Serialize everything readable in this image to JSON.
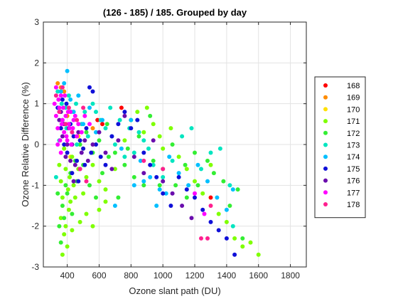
{
  "chart_data": {
    "type": "scatter",
    "title": "(126 - 185) / 185.  Grouped by day",
    "xlabel": "Ozone slant path (DU)",
    "ylabel": "Ozone Relative Difference (%)",
    "xlim": [
      250,
      1900
    ],
    "ylim": [
      -3,
      3
    ],
    "xticks": [
      400,
      600,
      800,
      1000,
      1200,
      1400,
      1600,
      1800
    ],
    "yticks": [
      -3,
      -2,
      -1,
      0,
      1,
      2,
      3
    ],
    "grid": true,
    "legend_position": "outside-right",
    "series": [
      {
        "name": "168",
        "color": "#ff0000",
        "points": [
          [
            590,
            0.6
          ],
          [
            620,
            0.5
          ],
          [
            740,
            0.9
          ],
          [
            360,
            0.4
          ],
          [
            1300,
            -1.3
          ]
        ]
      },
      {
        "name": "169",
        "color": "#ff8c00",
        "points": [
          [
            340,
            1.5
          ],
          [
            360,
            1.4
          ],
          [
            380,
            1.3
          ],
          [
            560,
            0.4
          ],
          [
            400,
            0.7
          ]
        ]
      },
      {
        "name": "170",
        "color": "#ffe000",
        "points": [
          [
            470,
            0.2
          ],
          [
            500,
            -0.1
          ],
          [
            380,
            0.5
          ],
          [
            420,
            -0.3
          ]
        ]
      },
      {
        "name": "171",
        "color": "#7fff00",
        "points": [
          [
            360,
            -1.8
          ],
          [
            380,
            -2.2
          ],
          [
            400,
            -2.5
          ],
          [
            420,
            -1.4
          ],
          [
            440,
            -1.0
          ],
          [
            470,
            -0.6
          ],
          [
            500,
            -1.2
          ],
          [
            520,
            -0.8
          ],
          [
            560,
            -0.5
          ],
          [
            600,
            -0.9
          ],
          [
            640,
            -1.1
          ],
          [
            700,
            -0.6
          ],
          [
            760,
            0.1
          ],
          [
            800,
            0.6
          ],
          [
            840,
            0.8
          ],
          [
            880,
            0.3
          ],
          [
            900,
            0.9
          ],
          [
            940,
            0.5
          ],
          [
            980,
            0.2
          ],
          [
            1000,
            -0.1
          ],
          [
            1050,
            0.4
          ],
          [
            1100,
            -0.3
          ],
          [
            1150,
            -0.6
          ],
          [
            1200,
            -0.9
          ],
          [
            1250,
            -1.2
          ],
          [
            1300,
            -0.5
          ],
          [
            1350,
            -1.7
          ],
          [
            1400,
            -1.9
          ],
          [
            1450,
            -2.3
          ],
          [
            1500,
            -2.5
          ],
          [
            1550,
            -2.4
          ],
          [
            1600,
            -2.7
          ],
          [
            370,
            -2.7
          ],
          [
            390,
            -2.0
          ],
          [
            410,
            -1.6
          ],
          [
            430,
            -2.1
          ],
          [
            450,
            -1.3
          ],
          [
            480,
            -1.9
          ],
          [
            520,
            -1.7
          ],
          [
            560,
            -2.0
          ],
          [
            600,
            -1.6
          ],
          [
            640,
            -1.4
          ],
          [
            350,
            -0.5
          ],
          [
            360,
            -0.9
          ],
          [
            370,
            -1.3
          ],
          [
            380,
            -0.1
          ],
          [
            390,
            -0.6
          ],
          [
            405,
            -1.1
          ],
          [
            415,
            -0.8
          ],
          [
            430,
            -0.3
          ]
        ]
      },
      {
        "name": "172",
        "color": "#33ee33",
        "points": [
          [
            350,
            -2.0
          ],
          [
            370,
            -1.5
          ],
          [
            390,
            -1.0
          ],
          [
            420,
            -0.7
          ],
          [
            450,
            -0.4
          ],
          [
            480,
            0.0
          ],
          [
            520,
            0.3
          ],
          [
            560,
            -0.2
          ],
          [
            600,
            0.1
          ],
          [
            650,
            0.5
          ],
          [
            700,
            -0.2
          ],
          [
            760,
            -0.5
          ],
          [
            820,
            -0.8
          ],
          [
            880,
            -1.0
          ],
          [
            940,
            -0.4
          ],
          [
            1000,
            -0.6
          ],
          [
            1080,
            -1.0
          ],
          [
            1150,
            -1.3
          ],
          [
            1200,
            -0.2
          ],
          [
            1280,
            -0.4
          ],
          [
            1320,
            -0.7
          ],
          [
            1380,
            -0.9
          ],
          [
            1420,
            -1.5
          ],
          [
            1470,
            -1.1
          ],
          [
            1500,
            -2.3
          ],
          [
            340,
            -1.2
          ],
          [
            360,
            -2.4
          ],
          [
            380,
            -1.8
          ],
          [
            400,
            -1.2
          ],
          [
            430,
            -1.7
          ],
          [
            460,
            -0.9
          ],
          [
            500,
            -0.5
          ],
          [
            540,
            -1.0
          ],
          [
            580,
            -1.3
          ],
          [
            620,
            -0.7
          ],
          [
            660,
            -0.3
          ],
          [
            720,
            -1.3
          ],
          [
            780,
            -0.1
          ],
          [
            850,
            0.2
          ],
          [
            920,
            0.7
          ],
          [
            980,
            -1.0
          ],
          [
            1060,
            0.0
          ],
          [
            1140,
            -0.5
          ],
          [
            1220,
            -1.0
          ]
        ]
      },
      {
        "name": "173",
        "color": "#00e5c0",
        "points": [
          [
            330,
            -0.8
          ],
          [
            350,
            0.1
          ],
          [
            370,
            0.6
          ],
          [
            390,
            0.9
          ],
          [
            410,
            1.2
          ],
          [
            430,
            0.3
          ],
          [
            460,
            0.0
          ],
          [
            490,
            0.5
          ],
          [
            530,
            0.2
          ],
          [
            580,
            0.8
          ],
          [
            640,
            0.4
          ],
          [
            700,
            0.0
          ],
          [
            760,
            -0.3
          ],
          [
            820,
            -0.2
          ],
          [
            880,
            0.1
          ],
          [
            940,
            -0.5
          ],
          [
            1000,
            -0.8
          ],
          [
            1060,
            -0.4
          ],
          [
            1120,
            0.2
          ],
          [
            1180,
            0.4
          ],
          [
            1240,
            -0.6
          ],
          [
            1300,
            -0.2
          ],
          [
            1360,
            -0.1
          ],
          [
            1420,
            -1.0
          ],
          [
            1440,
            -2.0
          ],
          [
            340,
            1.3
          ],
          [
            365,
            1.0
          ],
          [
            395,
            0.4
          ],
          [
            425,
            0.8
          ],
          [
            455,
            1.0
          ],
          [
            510,
            0.8
          ],
          [
            560,
            1.0
          ],
          [
            610,
            0.6
          ],
          [
            670,
            0.9
          ],
          [
            730,
            0.6
          ],
          [
            790,
            0.4
          ],
          [
            850,
            0.3
          ],
          [
            910,
            -0.1
          ]
        ]
      },
      {
        "name": "174",
        "color": "#00bfff",
        "points": [
          [
            360,
            1.3
          ],
          [
            380,
            1.5
          ],
          [
            400,
            1.8
          ],
          [
            420,
            1.1
          ],
          [
            440,
            0.8
          ],
          [
            470,
            1.2
          ],
          [
            500,
            0.5
          ],
          [
            540,
            0.9
          ],
          [
            580,
            0.3
          ],
          [
            620,
            0.6
          ],
          [
            680,
            0.2
          ],
          [
            740,
            -0.1
          ],
          [
            800,
            0.6
          ],
          [
            860,
            -0.4
          ],
          [
            920,
            -0.8
          ],
          [
            980,
            -1.1
          ],
          [
            1040,
            -0.3
          ],
          [
            1100,
            -0.7
          ],
          [
            1160,
            -1.0
          ],
          [
            1220,
            -0.5
          ],
          [
            1280,
            -0.9
          ],
          [
            1340,
            -1.3
          ],
          [
            1400,
            -1.6
          ],
          [
            1440,
            -1.1
          ],
          [
            700,
            -1.5
          ],
          [
            820,
            -1.0
          ],
          [
            880,
            -0.9
          ],
          [
            960,
            -1.5
          ],
          [
            1020,
            -1.2
          ]
        ]
      },
      {
        "name": "175",
        "color": "#1010d8",
        "points": [
          [
            340,
            0.9
          ],
          [
            360,
            0.4
          ],
          [
            380,
            0.0
          ],
          [
            400,
            -0.2
          ],
          [
            420,
            0.5
          ],
          [
            440,
            0.2
          ],
          [
            460,
            -0.4
          ],
          [
            480,
            0.1
          ],
          [
            500,
            -0.1
          ],
          [
            520,
            0.4
          ],
          [
            540,
            1.4
          ],
          [
            560,
            1.3
          ],
          [
            580,
            0.0
          ],
          [
            610,
            -0.3
          ],
          [
            640,
            -0.5
          ],
          [
            680,
            0.2
          ],
          [
            720,
            0.5
          ],
          [
            760,
            0.8
          ],
          [
            800,
            0.4
          ],
          [
            840,
            0.6
          ],
          [
            880,
            -0.2
          ],
          [
            920,
            -0.5
          ],
          [
            960,
            -0.8
          ],
          [
            1000,
            -1.2
          ],
          [
            1050,
            -1.5
          ],
          [
            1100,
            -0.8
          ],
          [
            1150,
            -1.1
          ],
          [
            1200,
            -1.3
          ],
          [
            1250,
            -1.6
          ],
          [
            1300,
            -1.9
          ],
          [
            1350,
            -2.1
          ],
          [
            1400,
            -2.3
          ],
          [
            1450,
            -2.7
          ],
          [
            370,
            1.1
          ],
          [
            395,
            1.0
          ],
          [
            430,
            -0.7
          ],
          [
            470,
            -0.9
          ],
          [
            510,
            -0.5
          ],
          [
            550,
            -0.2
          ]
        ]
      },
      {
        "name": "176",
        "color": "#6a0dad",
        "points": [
          [
            350,
            0.6
          ],
          [
            370,
            0.2
          ],
          [
            390,
            -0.3
          ],
          [
            410,
            0.4
          ],
          [
            430,
            0.0
          ],
          [
            450,
            -0.5
          ],
          [
            470,
            0.3
          ],
          [
            490,
            -0.2
          ],
          [
            510,
            0.1
          ],
          [
            530,
            -0.4
          ],
          [
            560,
            0.0
          ],
          [
            600,
            0.3
          ],
          [
            640,
            -0.2
          ],
          [
            680,
            -0.6
          ],
          [
            720,
            0.1
          ],
          [
            760,
            0.7
          ],
          [
            820,
            -0.3
          ],
          [
            880,
            -0.7
          ],
          [
            940,
            0.1
          ],
          [
            1000,
            -0.9
          ],
          [
            1060,
            -1.2
          ],
          [
            1120,
            -1.5
          ],
          [
            1180,
            -1.8
          ],
          [
            360,
            0.8
          ],
          [
            380,
            0.5
          ],
          [
            400,
            0.0
          ],
          [
            420,
            -0.4
          ],
          [
            440,
            -0.9
          ],
          [
            480,
            -0.6
          ]
        ]
      },
      {
        "name": "177",
        "color": "#ff00ff",
        "points": [
          [
            320,
            1.0
          ],
          [
            330,
            0.7
          ],
          [
            340,
            0.4
          ],
          [
            350,
            0.9
          ],
          [
            360,
            1.2
          ],
          [
            370,
            0.6
          ],
          [
            380,
            0.3
          ],
          [
            390,
            0.7
          ],
          [
            400,
            0.1
          ],
          [
            410,
            0.5
          ],
          [
            420,
            0.8
          ],
          [
            440,
            0.6
          ],
          [
            460,
            0.2
          ],
          [
            330,
            1.4
          ],
          [
            345,
            1.1
          ],
          [
            355,
            0.1
          ],
          [
            365,
            0.5
          ],
          [
            375,
            0.9
          ],
          [
            385,
            1.2
          ],
          [
            395,
            0.2
          ],
          [
            405,
            0.8
          ],
          [
            415,
            0.4
          ],
          [
            425,
            0.0
          ],
          [
            435,
            0.4
          ],
          [
            450,
            0.7
          ],
          [
            470,
            0.5
          ],
          [
            490,
            0.3
          ],
          [
            510,
            0.7
          ],
          [
            540,
            0.5
          ],
          [
            1200,
            -1.2
          ],
          [
            1260,
            -1.7
          ],
          [
            340,
            0.0
          ],
          [
            360,
            -0.2
          ]
        ]
      },
      {
        "name": "178",
        "color": "#ff1f8f",
        "points": [
          [
            330,
            1.2
          ],
          [
            350,
            0.8
          ],
          [
            370,
            1.4
          ],
          [
            390,
            0.5
          ],
          [
            410,
            0.9
          ],
          [
            430,
            0.3
          ],
          [
            460,
            0.6
          ],
          [
            500,
            0.9
          ],
          [
            480,
            -0.6
          ],
          [
            520,
            -0.9
          ],
          [
            1240,
            -2.3
          ],
          [
            1280,
            -2.3
          ],
          [
            1300,
            -1.5
          ],
          [
            880,
            -0.4
          ],
          [
            1000,
            -0.6
          ]
        ]
      }
    ]
  }
}
